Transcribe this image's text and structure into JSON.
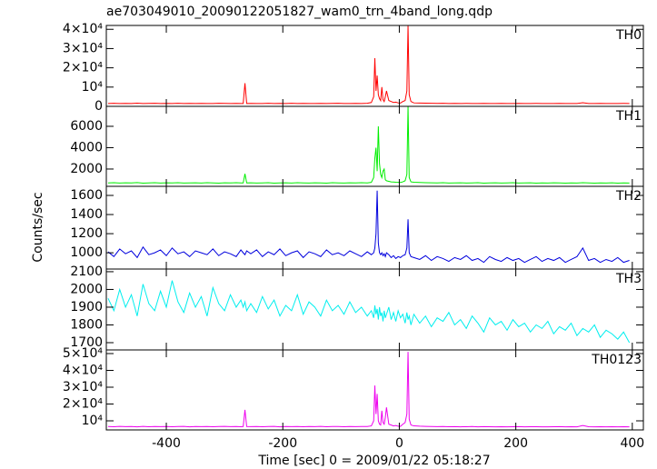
{
  "title": "ae703049010_20090122051827_wam0_trn_4band_long.qdp",
  "y_label": "Counts/sec",
  "x_label": "Time [sec] 0 = 2009/01/22 05:18:27",
  "xlim": [
    -503,
    419
  ],
  "xticks": [
    -400,
    -200,
    0,
    200,
    400
  ],
  "x": [
    -500,
    -490,
    -480,
    -470,
    -460,
    -450,
    -440,
    -430,
    -420,
    -410,
    -400,
    -390,
    -380,
    -370,
    -360,
    -350,
    -340,
    -330,
    -320,
    -310,
    -300,
    -290,
    -280,
    -272,
    -268,
    -265,
    -262,
    -255,
    -245,
    -235,
    -225,
    -215,
    -205,
    -195,
    -185,
    -175,
    -165,
    -155,
    -145,
    -135,
    -125,
    -115,
    -105,
    -95,
    -85,
    -75,
    -65,
    -55,
    -48,
    -44,
    -42,
    -40,
    -38,
    -36,
    -34,
    -32,
    -30,
    -28,
    -26,
    -24,
    -22,
    -18,
    -14,
    -10,
    -6,
    -2,
    2,
    6,
    10,
    13,
    15,
    17,
    20,
    25,
    35,
    45,
    55,
    65,
    75,
    85,
    95,
    105,
    115,
    125,
    135,
    145,
    155,
    165,
    175,
    185,
    195,
    205,
    215,
    225,
    235,
    245,
    255,
    265,
    275,
    285,
    295,
    305,
    315,
    325,
    335,
    345,
    355,
    365,
    375,
    385,
    395
  ],
  "chart_data": [
    {
      "type": "line",
      "label": "TH0",
      "color": "#ff0000",
      "ylim": [
        0,
        42000
      ],
      "yticks": [
        0,
        {
          "value": 10000,
          "label": "10⁴"
        },
        {
          "value": 20000,
          "label": "2×10⁴"
        },
        {
          "value": 30000,
          "label": "3×10⁴"
        },
        {
          "value": 40000,
          "label": "4×10⁴"
        }
      ],
      "values": [
        1500,
        1600,
        1450,
        1550,
        1500,
        1650,
        1480,
        1520,
        1600,
        1450,
        1550,
        1500,
        1620,
        1480,
        1530,
        1470,
        1560,
        1500,
        1450,
        1600,
        1520,
        1480,
        1550,
        1500,
        1500,
        12000,
        1500,
        1550,
        1480,
        1500,
        1620,
        1450,
        1530,
        1500,
        1580,
        1470,
        1520,
        1500,
        1460,
        1550,
        1490,
        1520,
        1600,
        1480,
        1500,
        1550,
        1470,
        1600,
        2000,
        5000,
        25000,
        8000,
        16000,
        6000,
        4000,
        3000,
        10000,
        3500,
        2500,
        5000,
        8000,
        3000,
        2500,
        2000,
        2200,
        1800,
        1700,
        2500,
        3000,
        8000,
        42000,
        6000,
        2500,
        1800,
        1700,
        1650,
        1600,
        1550,
        1600,
        1500,
        1550,
        1480,
        1520,
        1500,
        1450,
        1550,
        1500,
        1480,
        1520,
        1450,
        1500,
        1550,
        1470,
        1500,
        1520,
        1480,
        1450,
        1500,
        1550,
        1480,
        1500,
        1450,
        1900,
        1500,
        1480,
        1520,
        1450,
        1500,
        1480,
        1520,
        1500
      ]
    },
    {
      "type": "line",
      "label": "TH1",
      "color": "#00ee00",
      "ylim": [
        380,
        7870
      ],
      "yticks": [
        2000,
        4000,
        6000
      ],
      "values": [
        700,
        720,
        690,
        710,
        700,
        730,
        680,
        700,
        720,
        690,
        710,
        700,
        720,
        690,
        700,
        710,
        690,
        720,
        700,
        680,
        710,
        700,
        720,
        700,
        700,
        1550,
        700,
        710,
        690,
        700,
        720,
        680,
        700,
        710,
        690,
        720,
        700,
        690,
        710,
        700,
        680,
        720,
        700,
        690,
        710,
        700,
        720,
        700,
        750,
        1200,
        3000,
        4000,
        1800,
        6000,
        2500,
        1500,
        1200,
        1800,
        2000,
        1000,
        900,
        850,
        800,
        780,
        760,
        750,
        740,
        800,
        900,
        1500,
        7900,
        1200,
        800,
        760,
        740,
        720,
        710,
        700,
        720,
        690,
        700,
        710,
        690,
        700,
        720,
        680,
        700,
        710,
        690,
        700,
        720,
        690,
        700,
        710,
        680,
        700,
        690,
        710,
        700,
        680,
        700,
        690,
        720,
        700,
        680,
        700,
        690,
        710,
        680,
        700,
        690
      ]
    },
    {
      "type": "line",
      "label": "TH2",
      "color": "#0000dd",
      "ylim": [
        830,
        1695
      ],
      "yticks": [
        1000,
        1200,
        1400,
        1600
      ],
      "values": [
        1010,
        960,
        1040,
        990,
        1020,
        950,
        1060,
        980,
        1000,
        1030,
        970,
        1050,
        990,
        1010,
        960,
        1020,
        1000,
        980,
        1040,
        970,
        1010,
        990,
        960,
        1030,
        1000,
        980,
        1020,
        990,
        1030,
        960,
        1010,
        980,
        1040,
        970,
        1000,
        1020,
        950,
        1010,
        990,
        960,
        1030,
        980,
        1000,
        970,
        1020,
        990,
        960,
        1010,
        980,
        1000,
        1050,
        1200,
        1650,
        1100,
        1000,
        980,
        1000,
        970,
        990,
        960,
        1000,
        980,
        950,
        970,
        940,
        960,
        950,
        970,
        980,
        1050,
        1350,
        1000,
        960,
        950,
        930,
        970,
        920,
        960,
        940,
        910,
        950,
        930,
        970,
        920,
        940,
        900,
        960,
        930,
        910,
        950,
        920,
        940,
        900,
        930,
        960,
        910,
        940,
        920,
        950,
        900,
        930,
        960,
        1050,
        920,
        940,
        900,
        930,
        910,
        950,
        900,
        920
      ]
    },
    {
      "type": "line",
      "label": "TH3",
      "color": "#00eeee",
      "ylim": [
        1659,
        2115
      ],
      "yticks": [
        1700,
        1800,
        1900,
        2000,
        2100
      ],
      "values": [
        1950,
        1880,
        2000,
        1900,
        1970,
        1850,
        2030,
        1920,
        1880,
        1990,
        1900,
        2050,
        1930,
        1870,
        1980,
        1900,
        1960,
        1850,
        2010,
        1920,
        1880,
        1970,
        1900,
        1940,
        1900,
        1930,
        1880,
        1920,
        1870,
        1960,
        1890,
        1940,
        1850,
        1910,
        1880,
        1970,
        1860,
        1930,
        1900,
        1850,
        1940,
        1880,
        1910,
        1860,
        1930,
        1870,
        1900,
        1850,
        1880,
        1840,
        1910,
        1860,
        1890,
        1830,
        1900,
        1850,
        1870,
        1820,
        1880,
        1840,
        1860,
        1900,
        1830,
        1870,
        1820,
        1880,
        1840,
        1860,
        1810,
        1870,
        1830,
        1850,
        1800,
        1860,
        1810,
        1850,
        1790,
        1840,
        1820,
        1870,
        1800,
        1830,
        1780,
        1850,
        1810,
        1760,
        1840,
        1800,
        1820,
        1770,
        1830,
        1790,
        1810,
        1760,
        1800,
        1780,
        1820,
        1750,
        1790,
        1770,
        1810,
        1740,
        1780,
        1760,
        1800,
        1730,
        1770,
        1750,
        1720,
        1760,
        1700
      ]
    },
    {
      "type": "line",
      "label": "TH0123",
      "color": "#ee00ee",
      "ylim": [
        4600,
        52160
      ],
      "yticks": [
        {
          "value": 10000,
          "label": "10⁴"
        },
        {
          "value": 20000,
          "label": "2×10⁴"
        },
        {
          "value": 30000,
          "label": "3×10⁴"
        },
        {
          "value": 40000,
          "label": "4×10⁴"
        },
        {
          "value": 50000,
          "label": "5×10⁴"
        }
      ],
      "values": [
        6600,
        6500,
        6700,
        6550,
        6600,
        6450,
        6700,
        6500,
        6600,
        6550,
        6650,
        6500,
        6600,
        6700,
        6450,
        6600,
        6550,
        6650,
        6500,
        6600,
        6700,
        6550,
        6600,
        6500,
        6600,
        16500,
        6600,
        6550,
        6650,
        6500,
        6600,
        6700,
        6450,
        6600,
        6550,
        6650,
        6500,
        6600,
        6550,
        6700,
        6500,
        6600,
        6650,
        6500,
        6600,
        6550,
        6650,
        6600,
        7000,
        10000,
        31000,
        14000,
        26000,
        10000,
        8000,
        7500,
        16000,
        9000,
        8000,
        12000,
        18000,
        8000,
        7500,
        7000,
        7200,
        6800,
        6700,
        8000,
        9000,
        14000,
        51000,
        11000,
        7500,
        7000,
        6800,
        6700,
        6600,
        6550,
        6600,
        6500,
        6550,
        6450,
        6500,
        6600,
        6450,
        6550,
        6500,
        6450,
        6500,
        6400,
        6500,
        6550,
        6450,
        6500,
        6500,
        6450,
        6400,
        6500,
        6550,
        6450,
        6500,
        6400,
        7200,
        6500,
        6450,
        6500,
        6400,
        6500,
        6450,
        6500,
        6450
      ]
    }
  ]
}
